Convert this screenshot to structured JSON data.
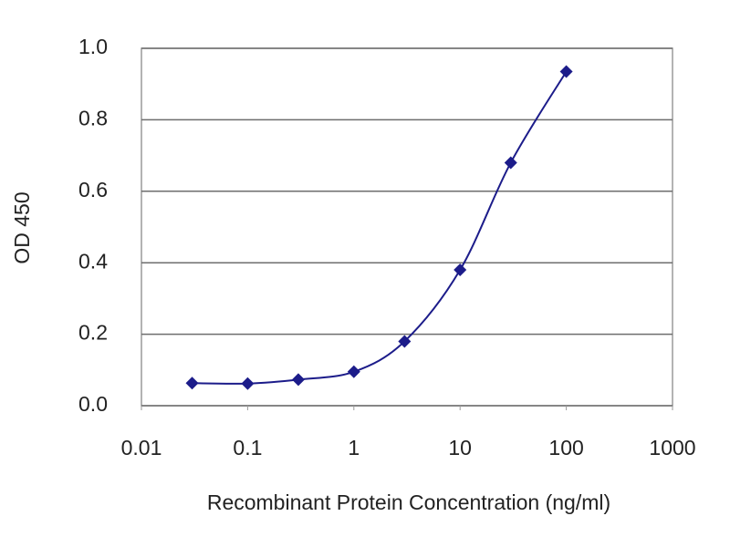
{
  "chart_data": {
    "type": "line",
    "x_label": "Recombinant Protein Concentration (ng/ml)",
    "y_label": "OD 450",
    "x": [
      0.03,
      0.1,
      0.3,
      1,
      3,
      10,
      30,
      100
    ],
    "values": [
      0.063,
      0.062,
      0.073,
      0.095,
      0.18,
      0.38,
      0.68,
      0.935
    ],
    "color": "#1c1c8a",
    "marker": "diamond",
    "smooth": true,
    "log_x": true,
    "xlim": [
      0.01,
      1000
    ],
    "xticks": [
      0.01,
      0.1,
      1,
      10,
      100,
      1000
    ],
    "ylim": [
      0,
      1
    ],
    "yticks": [
      {
        "value": 0,
        "label": "0.0"
      },
      0.2,
      0.4,
      0.6,
      0.8,
      {
        "value": 1,
        "label": "1.0"
      }
    ],
    "grid": true
  }
}
